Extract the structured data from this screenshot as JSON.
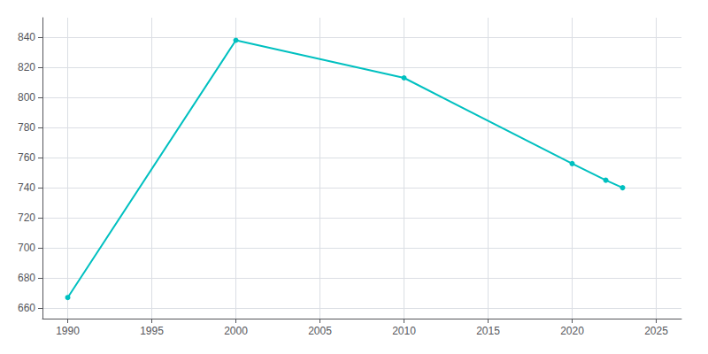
{
  "chart_data": {
    "type": "line",
    "x": [
      1990,
      2000,
      2010,
      2020,
      2022,
      2023
    ],
    "values": [
      667,
      838,
      813,
      756,
      745,
      740
    ],
    "color": "#00C0C0",
    "marker": "circle",
    "xlim": [
      1988.5,
      2026.5
    ],
    "xticks": [
      1990,
      1995,
      2000,
      2005,
      2010,
      2015,
      2020,
      2025
    ],
    "ylim": [
      653,
      853
    ],
    "yticks": [
      660,
      680,
      700,
      720,
      740,
      760,
      780,
      800,
      820,
      840
    ],
    "grid": true
  }
}
